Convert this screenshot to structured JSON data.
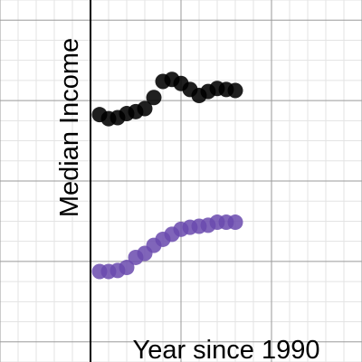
{
  "chart_data": {
    "type": "scatter",
    "title": "",
    "xlabel": "Year since 1990",
    "ylabel": "Median Income",
    "grid": true,
    "xlim": [
      -10,
      30
    ],
    "ylim": [
      -13,
      5
    ],
    "series": [
      {
        "color": "#000000",
        "x": [
          1,
          2,
          3,
          4,
          5,
          6,
          7,
          8,
          9,
          10,
          11,
          12,
          13,
          14,
          15,
          16
        ],
        "y": [
          -0.7,
          -0.9,
          -0.85,
          -0.65,
          -0.55,
          -0.4,
          0.15,
          0.95,
          1.05,
          0.85,
          0.55,
          0.25,
          0.45,
          0.6,
          0.55,
          0.5
        ]
      },
      {
        "color": "#6a4aae",
        "x": [
          1,
          2,
          3,
          4,
          5,
          6,
          7,
          8,
          9,
          10,
          11,
          12,
          13,
          14,
          15,
          16
        ],
        "y": [
          -8.5,
          -8.5,
          -8.45,
          -8.3,
          -7.8,
          -7.6,
          -7.2,
          -6.9,
          -6.65,
          -6.4,
          -6.3,
          -6.25,
          -6.2,
          -6.05,
          -6.05,
          -6.05
        ]
      }
    ]
  }
}
